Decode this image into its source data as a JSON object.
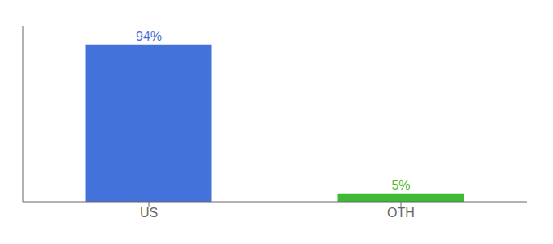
{
  "chart_data": {
    "type": "bar",
    "categories": [
      "US",
      "OTH"
    ],
    "values": [
      94,
      5
    ],
    "colors": [
      "#4472db",
      "#3dbb35"
    ],
    "value_labels": [
      "94%",
      "5%"
    ],
    "data_labels": true,
    "ylim": [
      0,
      105
    ],
    "yticks": [],
    "tick_labels": "x",
    "grid": false
  }
}
